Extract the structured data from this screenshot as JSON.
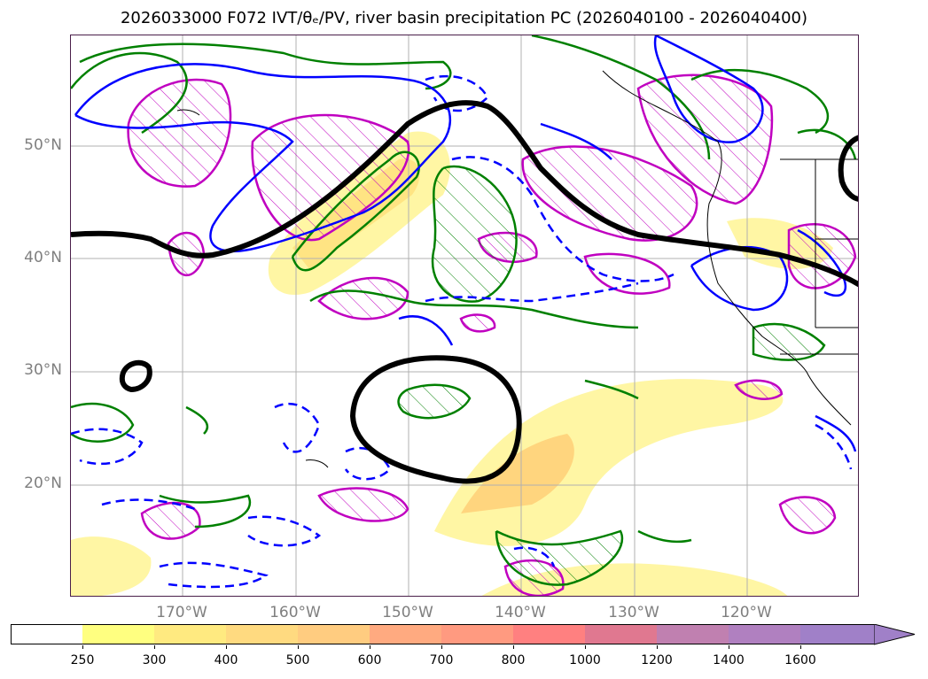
{
  "title": "2026033000 F072 IVT/θₑ/PV, river basin precipitation PC (2026040100 - 2026040400)",
  "map": {
    "lat_labels": [
      "50°N",
      "40°N",
      "30°N",
      "20°N"
    ],
    "lon_labels": [
      "170°W",
      "160°W",
      "150°W",
      "140°W",
      "130°W",
      "120°W"
    ],
    "layers": [
      {
        "name": "IVT shading",
        "color": "#fff06e"
      },
      {
        "name": "theta-e contour",
        "color": "#008000"
      },
      {
        "name": "PV contour solid",
        "color": "#0000ff"
      },
      {
        "name": "PV contour dashed",
        "color": "#0000ff"
      },
      {
        "name": "precipitation PC hatched",
        "color": "#c000c0"
      },
      {
        "name": "jet contour",
        "color": "#000000"
      }
    ]
  },
  "colorbar": {
    "ticks": [
      "250",
      "300",
      "400",
      "500",
      "600",
      "700",
      "800",
      "1000",
      "1200",
      "1400",
      "1600"
    ],
    "colors": [
      "#ffffff",
      "#ffff80",
      "#ffea80",
      "#ffda80",
      "#ffcc80",
      "#ffaa80",
      "#ff9a80",
      "#ff8080",
      "#e07890",
      "#c080b0",
      "#b080c0",
      "#a080c8"
    ]
  }
}
